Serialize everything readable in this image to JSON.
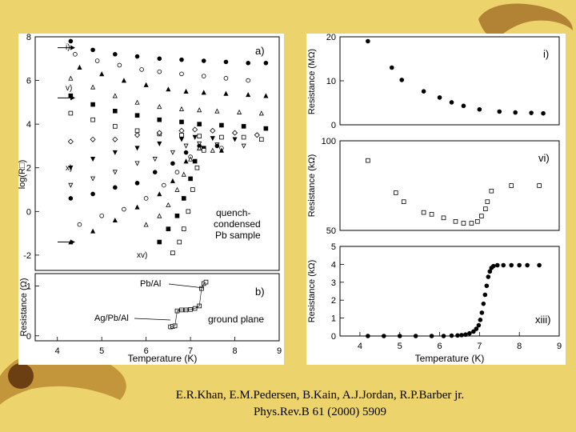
{
  "citation": {
    "authors": "E.R.Khan, E.M.Pedersen, B.Kain, A.J.Jordan, R.P.Barber jr.",
    "reference": "Phys.Rev.B 61 (2000) 5909"
  },
  "colors": {
    "background": "#ecd36c",
    "panel": "#ffffff",
    "marker": "#000000"
  },
  "chart_data": [
    {
      "id": "a",
      "type": "scatter",
      "panel_label": "a)",
      "ylabel": "log(R□)",
      "xlim": [
        3.5,
        9
      ],
      "ylim": [
        -2.7,
        8
      ],
      "yticks": [
        -2,
        0,
        2,
        4,
        6,
        8
      ],
      "annotation": [
        "quench-",
        "condensed",
        "Pb sample"
      ],
      "curve_labels": [
        "i)",
        "v)",
        "x)",
        "xv)"
      ],
      "series": [
        {
          "values": [
            [
              4.3,
              7.8
            ],
            [
              4.8,
              7.4
            ],
            [
              5.3,
              7.2
            ],
            [
              5.8,
              7.1
            ],
            [
              6.3,
              7.0
            ],
            [
              6.8,
              6.95
            ],
            [
              7.3,
              6.9
            ],
            [
              7.8,
              6.85
            ],
            [
              8.3,
              6.8
            ],
            [
              8.7,
              6.8
            ]
          ]
        },
        {
          "values": [
            [
              4.4,
              7.2
            ],
            [
              4.9,
              6.9
            ],
            [
              5.4,
              6.7
            ],
            [
              5.9,
              6.5
            ],
            [
              6.3,
              6.4
            ],
            [
              6.8,
              6.3
            ],
            [
              7.3,
              6.2
            ],
            [
              7.8,
              6.1
            ],
            [
              8.3,
              6.0
            ]
          ]
        },
        {
          "values": [
            [
              4.5,
              6.6
            ],
            [
              5.0,
              6.3
            ],
            [
              5.5,
              6.0
            ],
            [
              6.0,
              5.8
            ],
            [
              6.5,
              5.6
            ],
            [
              6.9,
              5.5
            ],
            [
              7.3,
              5.45
            ],
            [
              7.8,
              5.4
            ],
            [
              8.3,
              5.35
            ],
            [
              8.7,
              5.3
            ]
          ]
        },
        {
          "values": [
            [
              4.3,
              6.1
            ],
            [
              4.8,
              5.7
            ],
            [
              5.3,
              5.3
            ],
            [
              5.8,
              5.0
            ],
            [
              6.3,
              4.8
            ],
            [
              6.8,
              4.7
            ],
            [
              7.2,
              4.65
            ],
            [
              7.6,
              4.6
            ],
            [
              8.1,
              4.55
            ],
            [
              8.6,
              4.5
            ]
          ]
        },
        {
          "values": [
            [
              4.3,
              5.3
            ],
            [
              4.8,
              4.9
            ],
            [
              5.3,
              4.6
            ],
            [
              5.8,
              4.4
            ],
            [
              6.3,
              4.2
            ],
            [
              6.8,
              4.1
            ],
            [
              7.2,
              4.0
            ],
            [
              7.7,
              3.95
            ],
            [
              8.2,
              3.9
            ],
            [
              8.7,
              3.8
            ]
          ]
        },
        {
          "values": [
            [
              4.3,
              4.5
            ],
            [
              4.8,
              4.2
            ],
            [
              5.3,
              3.9
            ],
            [
              5.8,
              3.7
            ],
            [
              6.3,
              3.55
            ],
            [
              6.8,
              3.5
            ],
            [
              7.2,
              3.45
            ],
            [
              7.7,
              3.4
            ],
            [
              8.2,
              3.4
            ],
            [
              8.6,
              3.3
            ]
          ]
        },
        {
          "values": [
            [
              4.3,
              3.2
            ],
            [
              4.8,
              3.3
            ],
            [
              5.3,
              3.3
            ],
            [
              5.8,
              3.5
            ],
            [
              6.3,
              3.6
            ],
            [
              6.8,
              3.7
            ],
            [
              7.1,
              3.75
            ],
            [
              7.5,
              3.7
            ],
            [
              8.0,
              3.6
            ],
            [
              8.5,
              3.5
            ]
          ]
        },
        {
          "values": [
            [
              4.3,
              2.0
            ],
            [
              4.8,
              2.4
            ],
            [
              5.3,
              2.7
            ],
            [
              5.8,
              2.9
            ],
            [
              6.3,
              3.1
            ],
            [
              6.8,
              3.3
            ],
            [
              7.1,
              3.4
            ],
            [
              7.5,
              3.35
            ],
            [
              8.0,
              3.3
            ]
          ]
        },
        {
          "values": [
            [
              4.3,
              1.2
            ],
            [
              4.8,
              1.5
            ],
            [
              5.3,
              1.8
            ],
            [
              5.8,
              2.2
            ],
            [
              6.2,
              2.4
            ],
            [
              6.6,
              2.7
            ],
            [
              6.9,
              3.0
            ],
            [
              7.2,
              3.1
            ],
            [
              7.6,
              3.05
            ],
            [
              8.2,
              3.0
            ]
          ]
        },
        {
          "values": [
            [
              4.3,
              0.6
            ],
            [
              4.8,
              0.8
            ],
            [
              5.3,
              1.1
            ],
            [
              5.8,
              1.3
            ],
            [
              6.2,
              1.8
            ],
            [
              6.6,
              2.2
            ],
            [
              6.9,
              2.7
            ],
            [
              7.2,
              3.0
            ],
            [
              7.6,
              3.0
            ]
          ]
        },
        {
          "values": [
            [
              4.5,
              -0.6
            ],
            [
              5.0,
              -0.2
            ],
            [
              5.5,
              0.1
            ],
            [
              6.0,
              0.6
            ],
            [
              6.4,
              1.2
            ],
            [
              6.7,
              1.8
            ],
            [
              7.0,
              2.5
            ],
            [
              7.3,
              2.9
            ],
            [
              7.7,
              2.9
            ]
          ]
        },
        {
          "values": [
            [
              4.3,
              -1.4
            ],
            [
              4.8,
              -0.9
            ],
            [
              5.3,
              -0.4
            ],
            [
              5.8,
              0.2
            ],
            [
              6.3,
              0.8
            ],
            [
              6.6,
              1.4
            ],
            [
              6.9,
              2.3
            ],
            [
              7.2,
              2.9
            ],
            [
              7.7,
              2.8
            ]
          ]
        },
        {
          "values": [
            [
              6.0,
              -0.6
            ],
            [
              6.3,
              -0.2
            ],
            [
              6.5,
              0.3
            ],
            [
              6.7,
              1.0
            ],
            [
              6.85,
              1.7
            ],
            [
              7.0,
              2.4
            ],
            [
              7.2,
              2.9
            ],
            [
              7.5,
              2.8
            ]
          ]
        },
        {
          "values": [
            [
              6.3,
              -1.4
            ],
            [
              6.5,
              -0.8
            ],
            [
              6.7,
              -0.2
            ],
            [
              6.85,
              0.6
            ],
            [
              7.0,
              1.5
            ],
            [
              7.1,
              2.3
            ],
            [
              7.3,
              2.9
            ]
          ]
        },
        {
          "values": [
            [
              6.6,
              -1.9
            ],
            [
              6.75,
              -1.4
            ],
            [
              6.85,
              -0.8
            ],
            [
              6.95,
              0.0
            ],
            [
              7.05,
              1.0
            ],
            [
              7.15,
              2.0
            ],
            [
              7.3,
              2.8
            ]
          ]
        }
      ],
      "arrow_marks": [
        {
          "x": 3.6,
          "y": 7.5
        },
        {
          "x": 3.6,
          "y": 5.2
        },
        {
          "x": 3.6,
          "y": -1.4
        }
      ]
    },
    {
      "id": "b",
      "type": "scatter",
      "panel_label": "b)",
      "xlabel": "Temperature (K)",
      "ylabel": "Resistance (Ω)",
      "xlim": [
        3.5,
        9
      ],
      "ylim": [
        -0.1,
        1.25
      ],
      "xticks": [
        4,
        5,
        6,
        7,
        8,
        9
      ],
      "yticks": [
        0,
        1
      ],
      "annotations": [
        "Pb/Al",
        "Ag/Pb/Al",
        "ground plane"
      ],
      "series": [
        {
          "values": [
            [
              6.55,
              0.18
            ],
            [
              6.6,
              0.19
            ],
            [
              6.65,
              0.2
            ],
            [
              6.7,
              0.5
            ],
            [
              6.8,
              0.52
            ],
            [
              6.9,
              0.52
            ],
            [
              7.0,
              0.53
            ],
            [
              7.1,
              0.55
            ],
            [
              7.2,
              0.6
            ],
            [
              7.25,
              0.95
            ],
            [
              7.3,
              1.05
            ],
            [
              7.35,
              1.08
            ]
          ]
        }
      ]
    },
    {
      "id": "i",
      "type": "scatter",
      "panel_label": "i)",
      "ylabel": "Resistance (MΩ)",
      "xlim": [
        3.5,
        9
      ],
      "ylim": [
        0,
        20
      ],
      "yticks": [
        0,
        10,
        20
      ],
      "series": [
        {
          "values": [
            [
              4.2,
              19.0
            ],
            [
              4.8,
              13.0
            ],
            [
              5.05,
              10.2
            ],
            [
              5.6,
              7.6
            ],
            [
              6.0,
              6.2
            ],
            [
              6.3,
              5.1
            ],
            [
              6.6,
              4.3
            ],
            [
              7.0,
              3.5
            ],
            [
              7.5,
              3.0
            ],
            [
              7.9,
              2.8
            ],
            [
              8.3,
              2.7
            ],
            [
              8.6,
              2.6
            ]
          ]
        }
      ]
    },
    {
      "id": "vi",
      "type": "scatter",
      "panel_label": "vi)",
      "ylabel": "Resistance (kΩ)",
      "xlim": [
        3.5,
        9
      ],
      "ylim": [
        50,
        100
      ],
      "yticks": [
        50,
        100
      ],
      "series": [
        {
          "values": [
            [
              4.2,
              89
            ],
            [
              4.9,
              71
            ],
            [
              5.1,
              66
            ],
            [
              5.6,
              60
            ],
            [
              5.8,
              59
            ],
            [
              6.1,
              57
            ],
            [
              6.4,
              55
            ],
            [
              6.6,
              54
            ],
            [
              6.8,
              54
            ],
            [
              6.95,
              55
            ],
            [
              7.05,
              58
            ],
            [
              7.15,
              62
            ],
            [
              7.2,
              66
            ],
            [
              7.3,
              72
            ],
            [
              7.8,
              75
            ],
            [
              8.5,
              75
            ]
          ]
        }
      ]
    },
    {
      "id": "xiii",
      "type": "scatter",
      "panel_label": "xiii)",
      "xlabel": "Temperature (K)",
      "ylabel": "Resistance (kΩ)",
      "xlim": [
        3.5,
        9
      ],
      "ylim": [
        0,
        5
      ],
      "xticks": [
        4,
        5,
        6,
        7,
        8,
        9
      ],
      "yticks": [
        0,
        1,
        2,
        3,
        4,
        5
      ],
      "series": [
        {
          "values": [
            [
              4.2,
              0
            ],
            [
              4.6,
              0
            ],
            [
              5.0,
              0
            ],
            [
              5.4,
              0
            ],
            [
              5.8,
              0
            ],
            [
              6.1,
              0
            ],
            [
              6.3,
              0.02
            ],
            [
              6.45,
              0.03
            ],
            [
              6.55,
              0.05
            ],
            [
              6.65,
              0.08
            ],
            [
              6.75,
              0.15
            ],
            [
              6.85,
              0.25
            ],
            [
              6.92,
              0.4
            ],
            [
              6.98,
              0.6
            ],
            [
              7.02,
              0.9
            ],
            [
              7.06,
              1.3
            ],
            [
              7.1,
              1.8
            ],
            [
              7.14,
              2.3
            ],
            [
              7.18,
              2.8
            ],
            [
              7.22,
              3.3
            ],
            [
              7.26,
              3.6
            ],
            [
              7.3,
              3.8
            ],
            [
              7.35,
              3.9
            ],
            [
              7.45,
              3.95
            ],
            [
              7.6,
              3.95
            ],
            [
              7.8,
              3.95
            ],
            [
              8.0,
              3.95
            ],
            [
              8.2,
              3.95
            ],
            [
              8.5,
              3.95
            ]
          ]
        }
      ]
    }
  ]
}
